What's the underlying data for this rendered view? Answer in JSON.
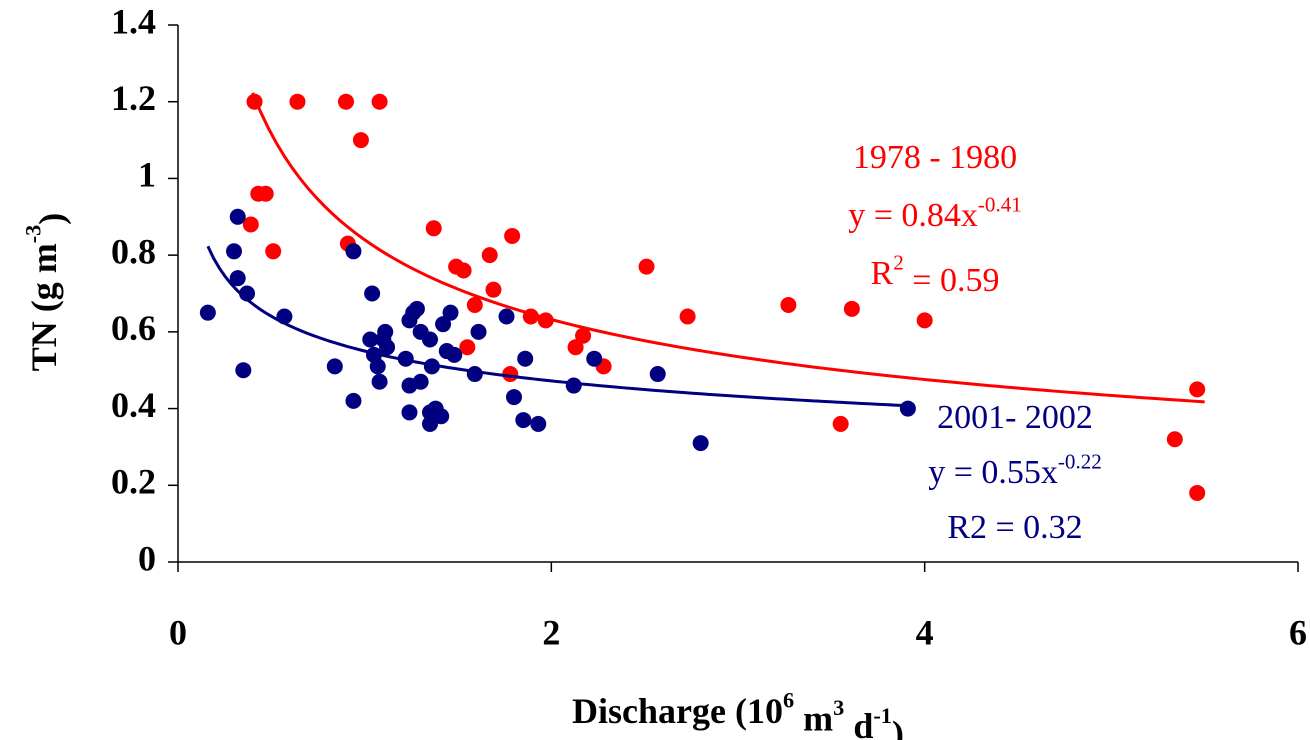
{
  "chart_data": {
    "type": "scatter",
    "xlabel": [
      "Discharge (10",
      "6",
      " m",
      "3",
      " d",
      "-1",
      ")"
    ],
    "ylabel": [
      "TN (g m",
      "-3",
      ")"
    ],
    "xlim": [
      0,
      6
    ],
    "xticks": [
      0,
      2,
      4,
      6
    ],
    "ylim": [
      0,
      1.4
    ],
    "yticks": [
      0,
      0.2,
      0.4,
      0.6,
      0.8,
      1,
      1.2,
      1.4
    ],
    "series": [
      {
        "color": "#ff0000",
        "x": [
          0.41,
          0.64,
          0.9,
          1.08,
          0.98,
          0.43,
          0.47,
          0.39,
          0.51,
          0.91,
          1.37,
          1.49,
          1.53,
          1.67,
          1.79,
          1.69,
          1.59,
          1.55,
          1.78,
          1.89,
          1.97,
          2.51,
          2.13,
          2.17,
          2.28,
          2.73,
          3.27,
          3.61,
          3.55,
          4.0,
          5.34,
          5.46,
          5.46
        ],
        "values": [
          1.2,
          1.2,
          1.2,
          1.2,
          1.1,
          0.96,
          0.96,
          0.88,
          0.81,
          0.83,
          0.87,
          0.77,
          0.76,
          0.8,
          0.85,
          0.71,
          0.67,
          0.56,
          0.49,
          0.64,
          0.63,
          0.77,
          0.56,
          0.59,
          0.51,
          0.64,
          0.67,
          0.66,
          0.36,
          0.63,
          0.32,
          0.45,
          0.18
        ],
        "trend": {
          "a": 0.84,
          "b": -0.41,
          "xrange": [
            0.4,
            5.5
          ]
        },
        "annotation": [
          [
            "1978 - 1980"
          ],
          [
            "y = 0.84x",
            "-0.41"
          ],
          [
            "R",
            "2",
            " = 0.59"
          ]
        ]
      },
      {
        "color": "#000080",
        "x": [
          0.16,
          0.32,
          0.3,
          0.32,
          0.37,
          0.35,
          0.57,
          0.94,
          1.04,
          0.84,
          0.94,
          1.03,
          1.05,
          1.07,
          1.08,
          1.11,
          1.12,
          1.1,
          1.22,
          1.24,
          1.26,
          1.28,
          1.3,
          1.35,
          1.36,
          1.24,
          1.24,
          1.3,
          1.35,
          1.38,
          1.41,
          1.35,
          1.42,
          1.46,
          1.44,
          1.48,
          1.61,
          1.59,
          1.76,
          1.8,
          1.86,
          1.85,
          1.93,
          2.12,
          2.23,
          2.57,
          2.8,
          3.91
        ],
        "values": [
          0.65,
          0.9,
          0.81,
          0.74,
          0.7,
          0.5,
          0.64,
          0.81,
          0.7,
          0.51,
          0.42,
          0.58,
          0.54,
          0.51,
          0.47,
          0.6,
          0.56,
          0.58,
          0.53,
          0.63,
          0.65,
          0.66,
          0.6,
          0.58,
          0.51,
          0.39,
          0.46,
          0.47,
          0.39,
          0.4,
          0.38,
          0.36,
          0.62,
          0.65,
          0.55,
          0.54,
          0.6,
          0.49,
          0.64,
          0.43,
          0.53,
          0.37,
          0.36,
          0.46,
          0.53,
          0.49,
          0.31,
          0.4
        ],
        "trend": {
          "a": 0.55,
          "b": -0.22,
          "xrange": [
            0.16,
            3.9
          ]
        },
        "annotation": [
          [
            "2001- 2002"
          ],
          [
            "y = 0.55x",
            "-0.22"
          ],
          [
            "R2 = 0.32"
          ]
        ]
      }
    ]
  }
}
